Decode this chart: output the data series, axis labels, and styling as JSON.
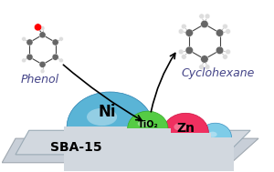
{
  "background_color": "#f0f0f0",
  "platform_color": "#c8cfd8",
  "platform_edge_color": "#a0a8b0",
  "ni_color_center": "#7ec8e3",
  "ni_color_edge": "#2a7db5",
  "tio2_color": "#5dc94e",
  "zn_color": "#f0326e",
  "zn_bubble_color": "#7ec8e3",
  "text_ni": "Ni",
  "text_tio2": "TiO₂",
  "text_zn": "Zn",
  "text_sba": "SBA-15",
  "text_phenol": "Phenol",
  "text_cyclohexane": "Cyclohexane",
  "title_fontsize": 10,
  "label_fontsize": 9,
  "small_fontsize": 8
}
